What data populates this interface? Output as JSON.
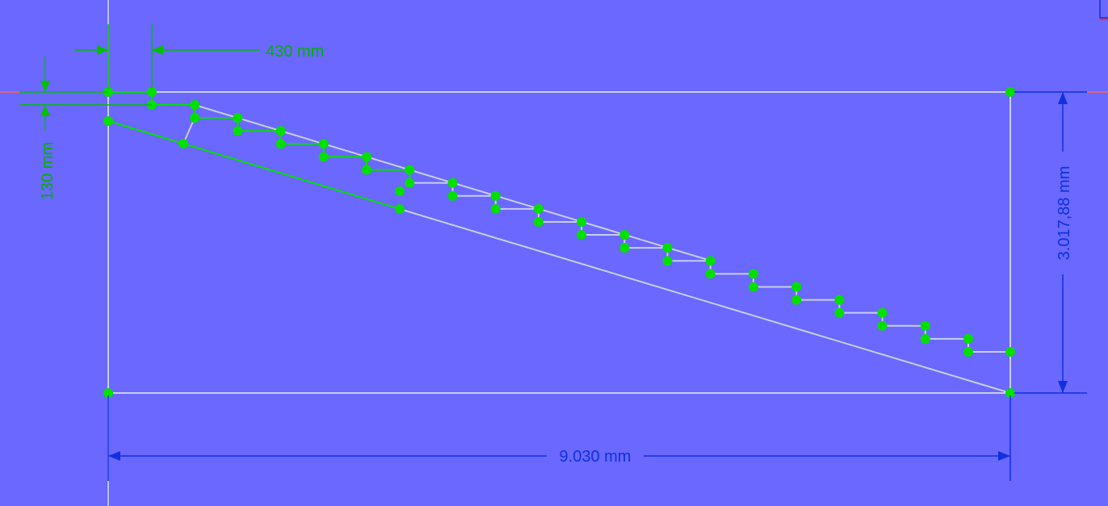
{
  "app": {
    "view": "sketch-editor"
  },
  "colors": {
    "background": "#6a68fe",
    "geometry": "#c8cdf2",
    "constrained": "#00e000",
    "dimension_blue": "#1030e0",
    "dimension_green": "#00c000",
    "axis": "#ff4040"
  },
  "dimensions": {
    "top_offset": "430 mm",
    "left_offset": "130 mm",
    "height": "3.017,88 mm",
    "width": "9.030 mm"
  },
  "sketch": {
    "steps_on_staircase": 19,
    "vertex_style": "filled-circle"
  }
}
